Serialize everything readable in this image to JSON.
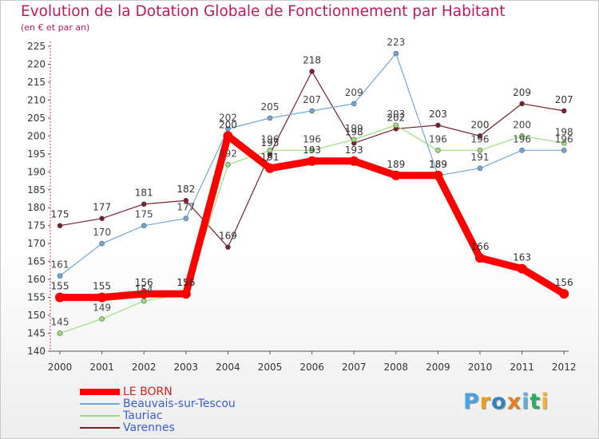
{
  "chart_data": {
    "type": "line",
    "title": "Evolution de la Dotation Globale de Fonctionnement par Habitant",
    "subtitle": "(en € et par an)",
    "xlabel": "",
    "ylabel": "",
    "ylim": [
      140,
      225
    ],
    "ytick_step": 5,
    "grid": false,
    "legend_position": "bottom-left",
    "x": [
      "2000",
      "2001",
      "2002",
      "2003",
      "2004",
      "2005",
      "2006",
      "2007",
      "2008",
      "2009",
      "2010",
      "2011",
      "2012"
    ],
    "series": [
      {
        "name": "Varennes",
        "color": "#7a1f2b",
        "label_color": "#333333",
        "width": 1.2,
        "values": [
          175,
          177,
          181,
          182,
          169,
          195,
          218,
          198,
          202,
          203,
          200,
          209,
          207
        ]
      },
      {
        "name": "Tauriac",
        "color": "#99e07a",
        "label_color": "#444444",
        "width": 1.2,
        "values": [
          145,
          149,
          154,
          156,
          192,
          196,
          196,
          199,
          203,
          196,
          196,
          200,
          198
        ]
      },
      {
        "name": "Beauvais-sur-Tescou",
        "color": "#6fa8dc",
        "label_color": "#444444",
        "width": 1.2,
        "values": [
          161,
          170,
          175,
          177,
          202,
          205,
          207,
          209,
          223,
          189,
          191,
          196,
          196
        ]
      },
      {
        "name": "LE BORN",
        "color": "#ff0000",
        "label_color": "#333333",
        "width": 9,
        "values": [
          155,
          155,
          156,
          156,
          200,
          191,
          193,
          193,
          189,
          189,
          166,
          163,
          156
        ]
      }
    ],
    "legend_order": [
      "LE BORN",
      "Beauvais-sur-Tescou",
      "Tauriac",
      "Varennes"
    ]
  },
  "logo": {
    "letters": [
      "P",
      "r",
      "o",
      "x",
      "i",
      "t",
      "i"
    ],
    "colors": [
      "#4aa3df",
      "#f39c12",
      "#2e86c1",
      "#e67e22",
      "#5dade2",
      "#27ae60",
      "#f5b041"
    ]
  }
}
